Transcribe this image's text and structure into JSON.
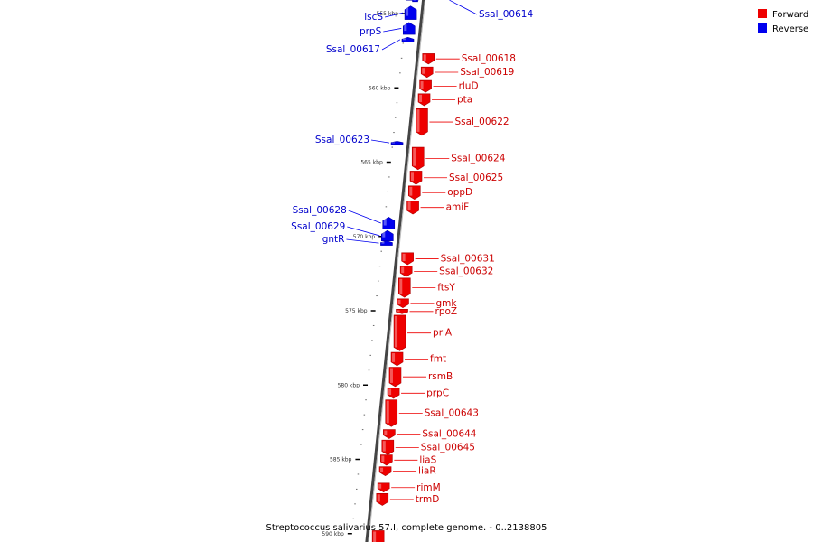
{
  "legend": {
    "forward_label": "Forward",
    "reverse_label": "Reverse",
    "forward_color": "#ee0000",
    "reverse_color": "#0000ee"
  },
  "caption": "Streptococcus salivarius 57.I, complete genome. - 0..2138805",
  "ticks": [
    {
      "label": "555 kbp",
      "pos": 555
    },
    {
      "label": "560 kbp",
      "pos": 560
    },
    {
      "label": "565 kbp",
      "pos": 565
    },
    {
      "label": "570 kbp",
      "pos": 570
    },
    {
      "label": "575 kbp",
      "pos": 575
    },
    {
      "label": "580 kbp",
      "pos": 580
    },
    {
      "label": "585 kbp",
      "pos": 585
    },
    {
      "label": "590 kbp",
      "pos": 590
    }
  ],
  "genes": [
    {
      "name": "",
      "strand": "reverse",
      "start": 553.5,
      "end": 554.1
    },
    {
      "name": "iscS",
      "strand": "reverse",
      "start": 554.5,
      "end": 555.4
    },
    {
      "name": "prpS",
      "strand": "reverse",
      "start": 555.6,
      "end": 556.4
    },
    {
      "name": "Ssal_00614",
      "strand": "reverse",
      "start": 554.0,
      "end": 554.2,
      "tiny": true
    },
    {
      "name": "Ssal_00617",
      "strand": "reverse",
      "start": 556.6,
      "end": 556.9
    },
    {
      "name": "Ssal_00618",
      "strand": "forward",
      "start": 557.7,
      "end": 558.4
    },
    {
      "name": "Ssal_00619",
      "strand": "forward",
      "start": 558.6,
      "end": 559.3
    },
    {
      "name": "rluD",
      "strand": "forward",
      "start": 559.5,
      "end": 560.3
    },
    {
      "name": "pta",
      "strand": "forward",
      "start": 560.4,
      "end": 561.2
    },
    {
      "name": "Ssal_00622",
      "strand": "forward",
      "start": 561.4,
      "end": 563.2
    },
    {
      "name": "Ssal_00623",
      "strand": "reverse",
      "start": 563.6,
      "end": 563.8
    },
    {
      "name": "Ssal_00624",
      "strand": "forward",
      "start": 564.0,
      "end": 565.5
    },
    {
      "name": "Ssal_00625",
      "strand": "forward",
      "start": 565.6,
      "end": 566.5
    },
    {
      "name": "oppD",
      "strand": "forward",
      "start": 566.6,
      "end": 567.5
    },
    {
      "name": "amiF",
      "strand": "forward",
      "start": 567.6,
      "end": 568.5
    },
    {
      "name": "Ssal_00628",
      "strand": "reverse",
      "start": 568.7,
      "end": 569.5
    },
    {
      "name": "Ssal_00629",
      "strand": "reverse",
      "start": 569.6,
      "end": 570.3
    },
    {
      "name": "gntR",
      "strand": "reverse",
      "start": 570.3,
      "end": 570.6
    },
    {
      "name": "Ssal_00631",
      "strand": "forward",
      "start": 571.1,
      "end": 571.9
    },
    {
      "name": "Ssal_00632",
      "strand": "forward",
      "start": 572.0,
      "end": 572.7
    },
    {
      "name": "ftsY",
      "strand": "forward",
      "start": 572.8,
      "end": 574.1
    },
    {
      "name": "gmk",
      "strand": "forward",
      "start": 574.2,
      "end": 574.8
    },
    {
      "name": "rpoZ",
      "strand": "forward",
      "start": 574.9,
      "end": 575.2
    },
    {
      "name": "priA",
      "strand": "forward",
      "start": 575.3,
      "end": 577.7
    },
    {
      "name": "fmt",
      "strand": "forward",
      "start": 577.8,
      "end": 578.7
    },
    {
      "name": "rsmB",
      "strand": "forward",
      "start": 578.8,
      "end": 580.1
    },
    {
      "name": "prpC",
      "strand": "forward",
      "start": 580.2,
      "end": 580.9
    },
    {
      "name": "Ssal_00643",
      "strand": "forward",
      "start": 581.0,
      "end": 582.8
    },
    {
      "name": "Ssal_00644",
      "strand": "forward",
      "start": 583.0,
      "end": 583.6
    },
    {
      "name": "Ssal_00645",
      "strand": "forward",
      "start": 583.7,
      "end": 584.7
    },
    {
      "name": "liaS",
      "strand": "forward",
      "start": 584.7,
      "end": 585.4
    },
    {
      "name": "liaR",
      "strand": "forward",
      "start": 585.5,
      "end": 586.1
    },
    {
      "name": "rimM",
      "strand": "forward",
      "start": 586.6,
      "end": 587.2
    },
    {
      "name": "trmD",
      "strand": "forward",
      "start": 587.3,
      "end": 588.1
    },
    {
      "name": "",
      "strand": "forward",
      "start": 589.8,
      "end": 591.0
    }
  ]
}
